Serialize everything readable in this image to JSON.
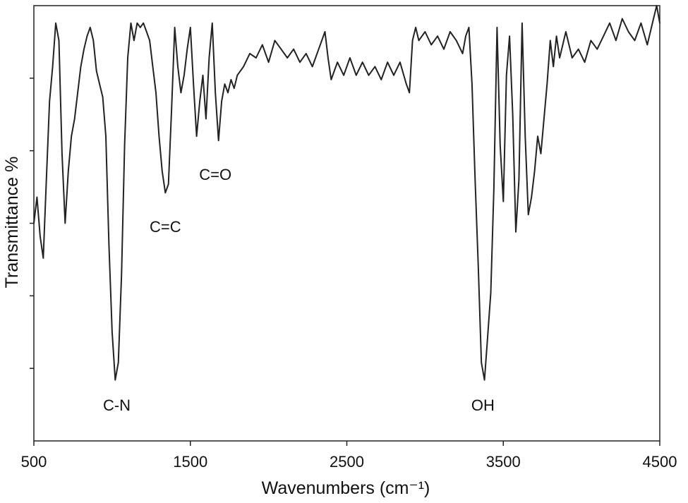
{
  "chart_data": {
    "type": "line",
    "title": "",
    "xlabel": "Wavenumbers (cm⁻¹)",
    "ylabel": "Transmittance %",
    "xlim": [
      500,
      4500
    ],
    "ylim": [
      0,
      100
    ],
    "x_ticks": [
      500,
      1500,
      2500,
      3500,
      4500
    ],
    "y_tick_count": 5,
    "grid": false,
    "legend": "none",
    "line_color": "#222222",
    "series": [
      {
        "points": [
          [
            500,
            50
          ],
          [
            520,
            56
          ],
          [
            540,
            47
          ],
          [
            560,
            42
          ],
          [
            580,
            60
          ],
          [
            600,
            78
          ],
          [
            620,
            86
          ],
          [
            640,
            96
          ],
          [
            660,
            92
          ],
          [
            680,
            66
          ],
          [
            700,
            50
          ],
          [
            720,
            62
          ],
          [
            740,
            70
          ],
          [
            760,
            74
          ],
          [
            780,
            80
          ],
          [
            800,
            86
          ],
          [
            820,
            90
          ],
          [
            840,
            93
          ],
          [
            860,
            95
          ],
          [
            880,
            92
          ],
          [
            900,
            85
          ],
          [
            920,
            82
          ],
          [
            940,
            79
          ],
          [
            960,
            70
          ],
          [
            980,
            45
          ],
          [
            1000,
            25
          ],
          [
            1020,
            14
          ],
          [
            1040,
            18
          ],
          [
            1060,
            38
          ],
          [
            1080,
            68
          ],
          [
            1100,
            88
          ],
          [
            1120,
            96
          ],
          [
            1140,
            92
          ],
          [
            1160,
            96
          ],
          [
            1180,
            95
          ],
          [
            1200,
            96
          ],
          [
            1220,
            94
          ],
          [
            1240,
            92
          ],
          [
            1260,
            86
          ],
          [
            1280,
            80
          ],
          [
            1300,
            70
          ],
          [
            1320,
            62
          ],
          [
            1340,
            57
          ],
          [
            1360,
            59
          ],
          [
            1380,
            76
          ],
          [
            1400,
            95
          ],
          [
            1420,
            86
          ],
          [
            1440,
            80
          ],
          [
            1460,
            84
          ],
          [
            1480,
            90
          ],
          [
            1500,
            95
          ],
          [
            1520,
            82
          ],
          [
            1540,
            70
          ],
          [
            1560,
            78
          ],
          [
            1580,
            84
          ],
          [
            1600,
            74
          ],
          [
            1620,
            88
          ],
          [
            1640,
            96
          ],
          [
            1660,
            80
          ],
          [
            1680,
            69
          ],
          [
            1700,
            78
          ],
          [
            1720,
            82
          ],
          [
            1740,
            80
          ],
          [
            1760,
            83
          ],
          [
            1780,
            81
          ],
          [
            1800,
            84
          ],
          [
            1840,
            86
          ],
          [
            1880,
            89
          ],
          [
            1920,
            88
          ],
          [
            1960,
            91
          ],
          [
            2000,
            87
          ],
          [
            2040,
            92
          ],
          [
            2080,
            90
          ],
          [
            2120,
            88
          ],
          [
            2160,
            90
          ],
          [
            2200,
            87
          ],
          [
            2240,
            89
          ],
          [
            2280,
            86
          ],
          [
            2320,
            90
          ],
          [
            2360,
            94
          ],
          [
            2380,
            88
          ],
          [
            2400,
            83
          ],
          [
            2440,
            87
          ],
          [
            2480,
            84
          ],
          [
            2520,
            88
          ],
          [
            2560,
            84
          ],
          [
            2600,
            87
          ],
          [
            2640,
            84
          ],
          [
            2680,
            86
          ],
          [
            2720,
            83
          ],
          [
            2760,
            87
          ],
          [
            2800,
            84
          ],
          [
            2840,
            87
          ],
          [
            2880,
            82
          ],
          [
            2900,
            80
          ],
          [
            2920,
            92
          ],
          [
            2940,
            95
          ],
          [
            2960,
            92
          ],
          [
            3000,
            94
          ],
          [
            3040,
            91
          ],
          [
            3080,
            93
          ],
          [
            3120,
            90
          ],
          [
            3160,
            94
          ],
          [
            3200,
            92
          ],
          [
            3240,
            89
          ],
          [
            3260,
            93
          ],
          [
            3280,
            95
          ],
          [
            3300,
            82
          ],
          [
            3320,
            60
          ],
          [
            3340,
            40
          ],
          [
            3360,
            18
          ],
          [
            3380,
            14
          ],
          [
            3400,
            24
          ],
          [
            3420,
            34
          ],
          [
            3440,
            58
          ],
          [
            3460,
            95
          ],
          [
            3480,
            68
          ],
          [
            3500,
            55
          ],
          [
            3520,
            84
          ],
          [
            3540,
            93
          ],
          [
            3560,
            75
          ],
          [
            3580,
            48
          ],
          [
            3600,
            60
          ],
          [
            3620,
            96
          ],
          [
            3640,
            70
          ],
          [
            3660,
            52
          ],
          [
            3680,
            56
          ],
          [
            3700,
            62
          ],
          [
            3720,
            70
          ],
          [
            3740,
            66
          ],
          [
            3760,
            74
          ],
          [
            3780,
            82
          ],
          [
            3800,
            92
          ],
          [
            3820,
            86
          ],
          [
            3840,
            93
          ],
          [
            3860,
            88
          ],
          [
            3880,
            91
          ],
          [
            3900,
            94
          ],
          [
            3940,
            88
          ],
          [
            3980,
            90
          ],
          [
            4020,
            87
          ],
          [
            4060,
            92
          ],
          [
            4100,
            90
          ],
          [
            4140,
            93
          ],
          [
            4180,
            96
          ],
          [
            4220,
            92
          ],
          [
            4260,
            97
          ],
          [
            4300,
            94
          ],
          [
            4340,
            92
          ],
          [
            4380,
            96
          ],
          [
            4420,
            91
          ],
          [
            4460,
            97
          ],
          [
            4480,
            100
          ],
          [
            4500,
            96
          ]
        ]
      }
    ],
    "annotations": [
      {
        "text": "C-N",
        "x": 1030,
        "y": 7
      },
      {
        "text": "C=C",
        "x": 1340,
        "y": 48
      },
      {
        "text": "C=O",
        "x": 1660,
        "y": 60
      },
      {
        "text": "OH",
        "x": 3370,
        "y": 7
      }
    ]
  }
}
